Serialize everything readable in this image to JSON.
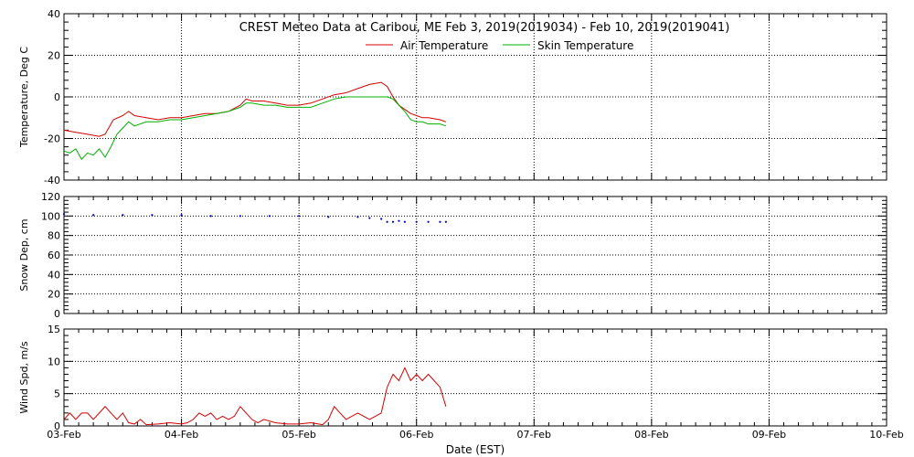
{
  "title": "CREST Meteo Data at Caribou, ME   Feb  3, 2019(2019034) - Feb 10, 2019(2019041)",
  "xlabel": "Date (EST)",
  "x_ticks": [
    "03-Feb",
    "04-Feb",
    "05-Feb",
    "06-Feb",
    "07-Feb",
    "08-Feb",
    "09-Feb",
    "10-Feb"
  ],
  "chart_data": [
    {
      "type": "line",
      "panel": "temperature",
      "ylabel": "Temperature, Deg C",
      "ylim": [
        -40,
        40
      ],
      "y_ticks": [
        -40,
        -20,
        0,
        20,
        40
      ],
      "x_unit": "days since 03-Feb",
      "xlim": [
        0,
        7
      ],
      "grid": true,
      "legend_position": "top-center",
      "series": [
        {
          "name": "Air Temperature",
          "color": "#d40000",
          "x": [
            0,
            0.1,
            0.2,
            0.3,
            0.35,
            0.42,
            0.5,
            0.55,
            0.6,
            0.7,
            0.8,
            0.9,
            1.0,
            1.1,
            1.2,
            1.3,
            1.4,
            1.5,
            1.55,
            1.6,
            1.7,
            1.8,
            1.9,
            2.0,
            2.1,
            2.2,
            2.3,
            2.4,
            2.5,
            2.6,
            2.7,
            2.75,
            2.8,
            2.85,
            2.9,
            2.95,
            3.0,
            3.05,
            3.1,
            3.2,
            3.25
          ],
          "y": [
            -16,
            -17,
            -18,
            -19,
            -18,
            -11,
            -9,
            -7,
            -9,
            -10,
            -11,
            -10,
            -10,
            -9,
            -8,
            -8,
            -7,
            -4,
            -1,
            -2,
            -2,
            -3,
            -4,
            -4,
            -3,
            -1,
            1,
            2,
            4,
            6,
            7,
            5,
            0,
            -4,
            -6,
            -8,
            -9,
            -10,
            -10,
            -11,
            -12
          ]
        },
        {
          "name": "Skin Temperature",
          "color": "#00b000",
          "x": [
            0,
            0.05,
            0.1,
            0.15,
            0.2,
            0.25,
            0.3,
            0.35,
            0.4,
            0.45,
            0.5,
            0.55,
            0.6,
            0.7,
            0.8,
            0.9,
            1.0,
            1.1,
            1.2,
            1.3,
            1.4,
            1.5,
            1.55,
            1.6,
            1.7,
            1.8,
            1.9,
            2.0,
            2.1,
            2.2,
            2.3,
            2.4,
            2.5,
            2.6,
            2.7,
            2.75,
            2.8,
            2.85,
            2.9,
            2.95,
            3.0,
            3.05,
            3.1,
            3.2,
            3.25
          ],
          "y": [
            -26,
            -27,
            -25,
            -30,
            -27,
            -28,
            -25,
            -29,
            -24,
            -18,
            -15,
            -12,
            -14,
            -12,
            -12,
            -11,
            -11,
            -10,
            -9,
            -8,
            -7,
            -5,
            -3,
            -3,
            -4,
            -4,
            -5,
            -5,
            -5,
            -3,
            -1,
            0,
            0,
            0,
            0,
            0,
            -1,
            -4,
            -7,
            -11,
            -12,
            -12,
            -13,
            -13,
            -14
          ]
        }
      ]
    },
    {
      "type": "scatter",
      "panel": "snow_depth",
      "ylabel": "Snow Dep, cm",
      "ylim": [
        0,
        120
      ],
      "y_ticks": [
        0,
        20,
        40,
        60,
        80,
        100,
        120
      ],
      "x_unit": "days since 03-Feb",
      "xlim": [
        0,
        7
      ],
      "grid": true,
      "series": [
        {
          "color": "#0000c8",
          "x": [
            0,
            0.25,
            0.5,
            0.75,
            1.0,
            1.25,
            1.5,
            1.75,
            2.0,
            2.25,
            2.5,
            2.6,
            2.7,
            2.75,
            2.8,
            2.85,
            2.9,
            3.0,
            3.1,
            3.2,
            3.25
          ],
          "y": [
            102,
            101,
            101,
            101,
            101,
            100,
            100,
            100,
            100,
            99,
            99,
            98,
            97,
            94,
            94,
            95,
            94,
            94,
            94,
            94,
            94
          ]
        }
      ]
    },
    {
      "type": "line",
      "panel": "wind_speed",
      "ylabel": "Wind Spd, m/s",
      "ylim": [
        0,
        15
      ],
      "y_ticks": [
        0,
        5,
        10,
        15
      ],
      "x_unit": "days since 03-Feb",
      "xlim": [
        0,
        7
      ],
      "grid": true,
      "series": [
        {
          "color": "#d40000",
          "x": [
            0,
            0.05,
            0.1,
            0.15,
            0.2,
            0.25,
            0.3,
            0.35,
            0.4,
            0.45,
            0.5,
            0.55,
            0.6,
            0.65,
            0.7,
            0.8,
            0.9,
            1.0,
            1.05,
            1.1,
            1.15,
            1.2,
            1.25,
            1.3,
            1.35,
            1.4,
            1.45,
            1.5,
            1.55,
            1.6,
            1.65,
            1.7,
            1.8,
            1.9,
            2.0,
            2.1,
            2.2,
            2.25,
            2.3,
            2.35,
            2.4,
            2.45,
            2.5,
            2.55,
            2.6,
            2.65,
            2.7,
            2.75,
            2.8,
            2.85,
            2.9,
            2.95,
            3.0,
            3.05,
            3.1,
            3.15,
            3.2,
            3.25
          ],
          "y": [
            1,
            2,
            1,
            2,
            2,
            1,
            2,
            3,
            2,
            1,
            2,
            0.5,
            0.3,
            1,
            0.2,
            0.3,
            0.5,
            0.3,
            0.5,
            1,
            2,
            1.5,
            2,
            1,
            1.5,
            1,
            1.5,
            3,
            2,
            1,
            0.5,
            1,
            0.5,
            0.3,
            0.3,
            0.5,
            0.2,
            1,
            3,
            2,
            1,
            1.5,
            2,
            1.5,
            1,
            1.5,
            2,
            6,
            8,
            7,
            9,
            7,
            8,
            7,
            8,
            7,
            6,
            3
          ]
        }
      ]
    }
  ]
}
